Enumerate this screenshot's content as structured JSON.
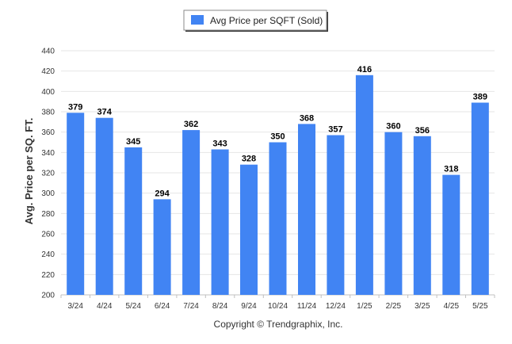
{
  "colors": {
    "bar": "#4184f3",
    "grid": "#e6e6e6",
    "axis": "#c0c0c0"
  },
  "chart_data": {
    "type": "bar",
    "categories": [
      "3/24",
      "4/24",
      "5/24",
      "6/24",
      "7/24",
      "8/24",
      "9/24",
      "10/24",
      "11/24",
      "12/24",
      "1/25",
      "2/25",
      "3/25",
      "4/25",
      "5/25"
    ],
    "series": [
      {
        "name": "Avg Price per SQFT (Sold)",
        "values": [
          379,
          374,
          345,
          294,
          362,
          343,
          328,
          350,
          368,
          357,
          416,
          360,
          356,
          318,
          389
        ]
      }
    ],
    "ylabel": "Avg. Price per SQ. FT.",
    "xlabel": "",
    "ylim": [
      200,
      440
    ],
    "yticks": [
      200,
      220,
      240,
      260,
      280,
      300,
      320,
      340,
      360,
      380,
      400,
      420,
      440
    ],
    "grid": true,
    "legend_position": "top-center",
    "data_labels": true
  },
  "footer": {
    "copyright": "Copyright © Trendgraphix, Inc."
  }
}
